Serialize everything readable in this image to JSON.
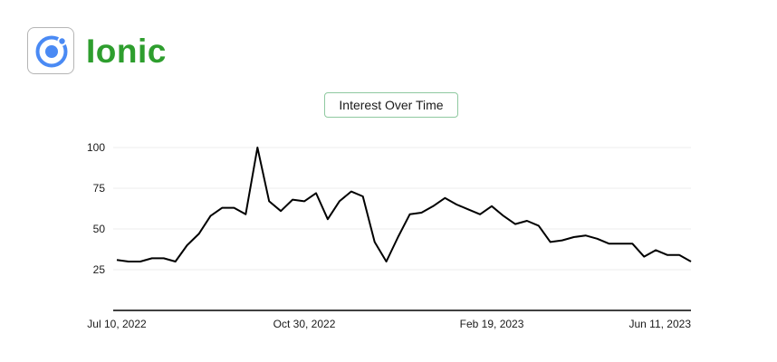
{
  "brand": {
    "name": "Ionic",
    "icon": "ionic-logo-icon",
    "brand_color": "#2e9e2e",
    "icon_color": "#4a8af4"
  },
  "chart_data": {
    "type": "line",
    "title": "Interest Over Time",
    "xlabel": "",
    "ylabel": "",
    "ylim": [
      10,
      100
    ],
    "yticks": [
      25,
      50,
      75,
      100
    ],
    "x_tick_labels": [
      {
        "index": 0,
        "label": "Jul 10, 2022"
      },
      {
        "index": 16,
        "label": "Oct 30, 2022"
      },
      {
        "index": 32,
        "label": "Feb 19, 2023"
      },
      {
        "index": 48,
        "label": "Jun 11, 2023"
      }
    ],
    "grid": true,
    "line_color": "#000000",
    "series": [
      {
        "values": [
          31,
          30,
          30,
          32,
          32,
          30,
          40,
          47,
          58,
          63,
          63,
          59,
          100,
          67,
          61,
          68,
          67,
          72,
          56,
          67,
          73,
          70,
          42,
          30,
          45,
          59,
          60,
          64,
          69,
          65,
          62,
          59,
          64,
          58,
          53,
          55,
          52,
          42,
          43,
          45,
          46,
          44,
          41,
          41,
          41,
          33,
          37,
          34,
          34,
          30
        ]
      }
    ]
  }
}
